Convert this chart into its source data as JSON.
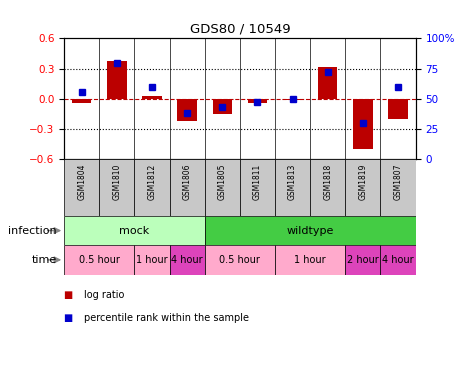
{
  "title": "GDS80 / 10549",
  "samples": [
    "GSM1804",
    "GSM1810",
    "GSM1812",
    "GSM1806",
    "GSM1805",
    "GSM1811",
    "GSM1813",
    "GSM1818",
    "GSM1819",
    "GSM1807"
  ],
  "log_ratio": [
    -0.04,
    0.38,
    0.03,
    -0.22,
    -0.15,
    -0.04,
    -0.01,
    0.32,
    -0.5,
    -0.2
  ],
  "percentile_rank": [
    56,
    80,
    60,
    38,
    43,
    47,
    50,
    72,
    30,
    60
  ],
  "ylim_left": [
    -0.6,
    0.6
  ],
  "ylim_right": [
    0,
    100
  ],
  "yticks_left": [
    -0.6,
    -0.3,
    0.0,
    0.3,
    0.6
  ],
  "yticks_right": [
    0,
    25,
    50,
    75,
    100
  ],
  "ytick_labels_right": [
    "0",
    "25",
    "50",
    "75",
    "100%"
  ],
  "dotted_lines": [
    -0.3,
    0.3
  ],
  "bar_color": "#BB0000",
  "percentile_color": "#0000CC",
  "infection_groups": [
    {
      "label": "mock",
      "start": 0,
      "end": 4,
      "color": "#BBFFBB"
    },
    {
      "label": "wildtype",
      "start": 4,
      "end": 10,
      "color": "#44CC44"
    }
  ],
  "time_groups": [
    {
      "label": "0.5 hour",
      "start": 0,
      "end": 2,
      "color": "#FFAACC"
    },
    {
      "label": "1 hour",
      "start": 2,
      "end": 3,
      "color": "#FFAACC"
    },
    {
      "label": "4 hour",
      "start": 3,
      "end": 4,
      "color": "#DD44BB"
    },
    {
      "label": "0.5 hour",
      "start": 4,
      "end": 6,
      "color": "#FFAACC"
    },
    {
      "label": "1 hour",
      "start": 6,
      "end": 8,
      "color": "#FFAACC"
    },
    {
      "label": "2 hour",
      "start": 8,
      "end": 9,
      "color": "#DD44BB"
    },
    {
      "label": "4 hour",
      "start": 9,
      "end": 10,
      "color": "#DD44BB"
    }
  ],
  "legend_items": [
    {
      "label": "log ratio",
      "color": "#BB0000"
    },
    {
      "label": "percentile rank within the sample",
      "color": "#0000CC"
    }
  ],
  "sample_box_color": "#C8C8C8",
  "infection_label": "infection",
  "time_label": "time",
  "bg_color": "#FFFFFF",
  "bar_width": 0.55
}
